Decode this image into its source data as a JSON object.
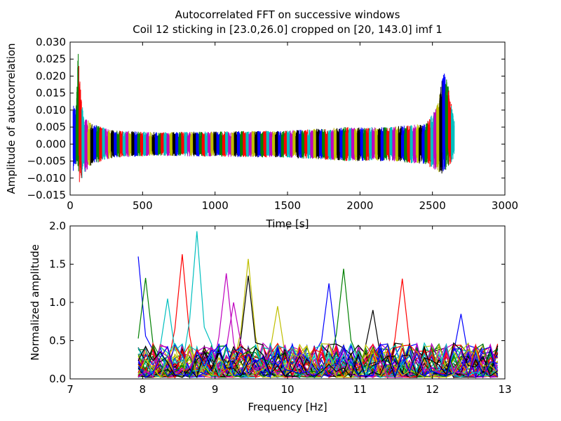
{
  "figure": {
    "title_line1": "Autocorrelated FFT on successive windows",
    "title_line2": "Coil 12 sticking in [23.0,26.0] cropped on [20, 143.0] imf 1"
  },
  "colors": [
    "#0000ff",
    "#008000",
    "#ff0000",
    "#00bfbf",
    "#bf00bf",
    "#bfbf00",
    "#000000"
  ],
  "chart_data": [
    {
      "type": "line",
      "xlabel": "Time [s]",
      "ylabel": "Amplitude of autocorrelation",
      "xlim": [
        0,
        3000
      ],
      "ylim": [
        -0.015,
        0.03
      ],
      "xticks": [
        "0",
        "500",
        "1000",
        "1500",
        "2000",
        "2500",
        "3000"
      ],
      "xtick_values": [
        0,
        500,
        1000,
        1500,
        2000,
        2500,
        3000
      ],
      "yticks": [
        "−0.015",
        "−0.010",
        "−0.005",
        "0.000",
        "0.005",
        "0.010",
        "0.015",
        "0.020",
        "0.025",
        "0.030"
      ],
      "ytick_values": [
        -0.015,
        -0.01,
        -0.005,
        0,
        0.005,
        0.01,
        0.015,
        0.02,
        0.025,
        0.03
      ],
      "window_span": [
        20,
        2650
      ],
      "window_count": 130,
      "window_envelope": {
        "x": [
          20,
          40,
          55,
          70,
          90,
          150,
          300,
          600,
          1500,
          1900,
          2200,
          2450,
          2520,
          2550,
          2580,
          2600,
          2650
        ],
        "upper": [
          0.014,
          0.01,
          0.027,
          0.017,
          0.009,
          0.006,
          0.004,
          0.0035,
          0.004,
          0.005,
          0.005,
          0.006,
          0.01,
          0.015,
          0.022,
          0.019,
          0.007
        ],
        "lower": [
          -0.008,
          -0.007,
          -0.012,
          -0.012,
          -0.009,
          -0.006,
          -0.004,
          -0.0035,
          -0.004,
          -0.005,
          -0.005,
          -0.006,
          -0.008,
          -0.009,
          -0.009,
          -0.008,
          -0.004
        ]
      }
    },
    {
      "type": "line",
      "xlabel": "Frequency [Hz]",
      "ylabel": "Normalized amplitude",
      "xlim": [
        7,
        13
      ],
      "ylim": [
        0,
        2
      ],
      "xticks": [
        "7",
        "8",
        "9",
        "10",
        "11",
        "12",
        "13"
      ],
      "xtick_values": [
        7,
        8,
        9,
        10,
        11,
        12,
        13
      ],
      "yticks": [
        "0.0",
        "0.5",
        "1.0",
        "1.5",
        "2.0"
      ],
      "ytick_values": [
        0,
        0.5,
        1,
        1.5,
        2
      ],
      "freq_range": [
        7.94,
        12.9
      ],
      "line_count": 50,
      "peaks": [
        {
          "x": 7.95,
          "y": 1.6
        },
        {
          "x": 8.0,
          "y": 1.32
        },
        {
          "x": 8.58,
          "y": 1.63
        },
        {
          "x": 8.75,
          "y": 1.93
        },
        {
          "x": 9.12,
          "y": 1.38
        },
        {
          "x": 9.45,
          "y": 1.57
        },
        {
          "x": 9.48,
          "y": 1.35
        },
        {
          "x": 10.55,
          "y": 1.25
        },
        {
          "x": 10.75,
          "y": 1.44
        },
        {
          "x": 11.62,
          "y": 1.31
        },
        {
          "x": 8.3,
          "y": 1.05
        },
        {
          "x": 9.3,
          "y": 1.0
        },
        {
          "x": 9.85,
          "y": 0.95
        },
        {
          "x": 11.2,
          "y": 0.9
        },
        {
          "x": 12.35,
          "y": 0.85
        }
      ]
    }
  ]
}
